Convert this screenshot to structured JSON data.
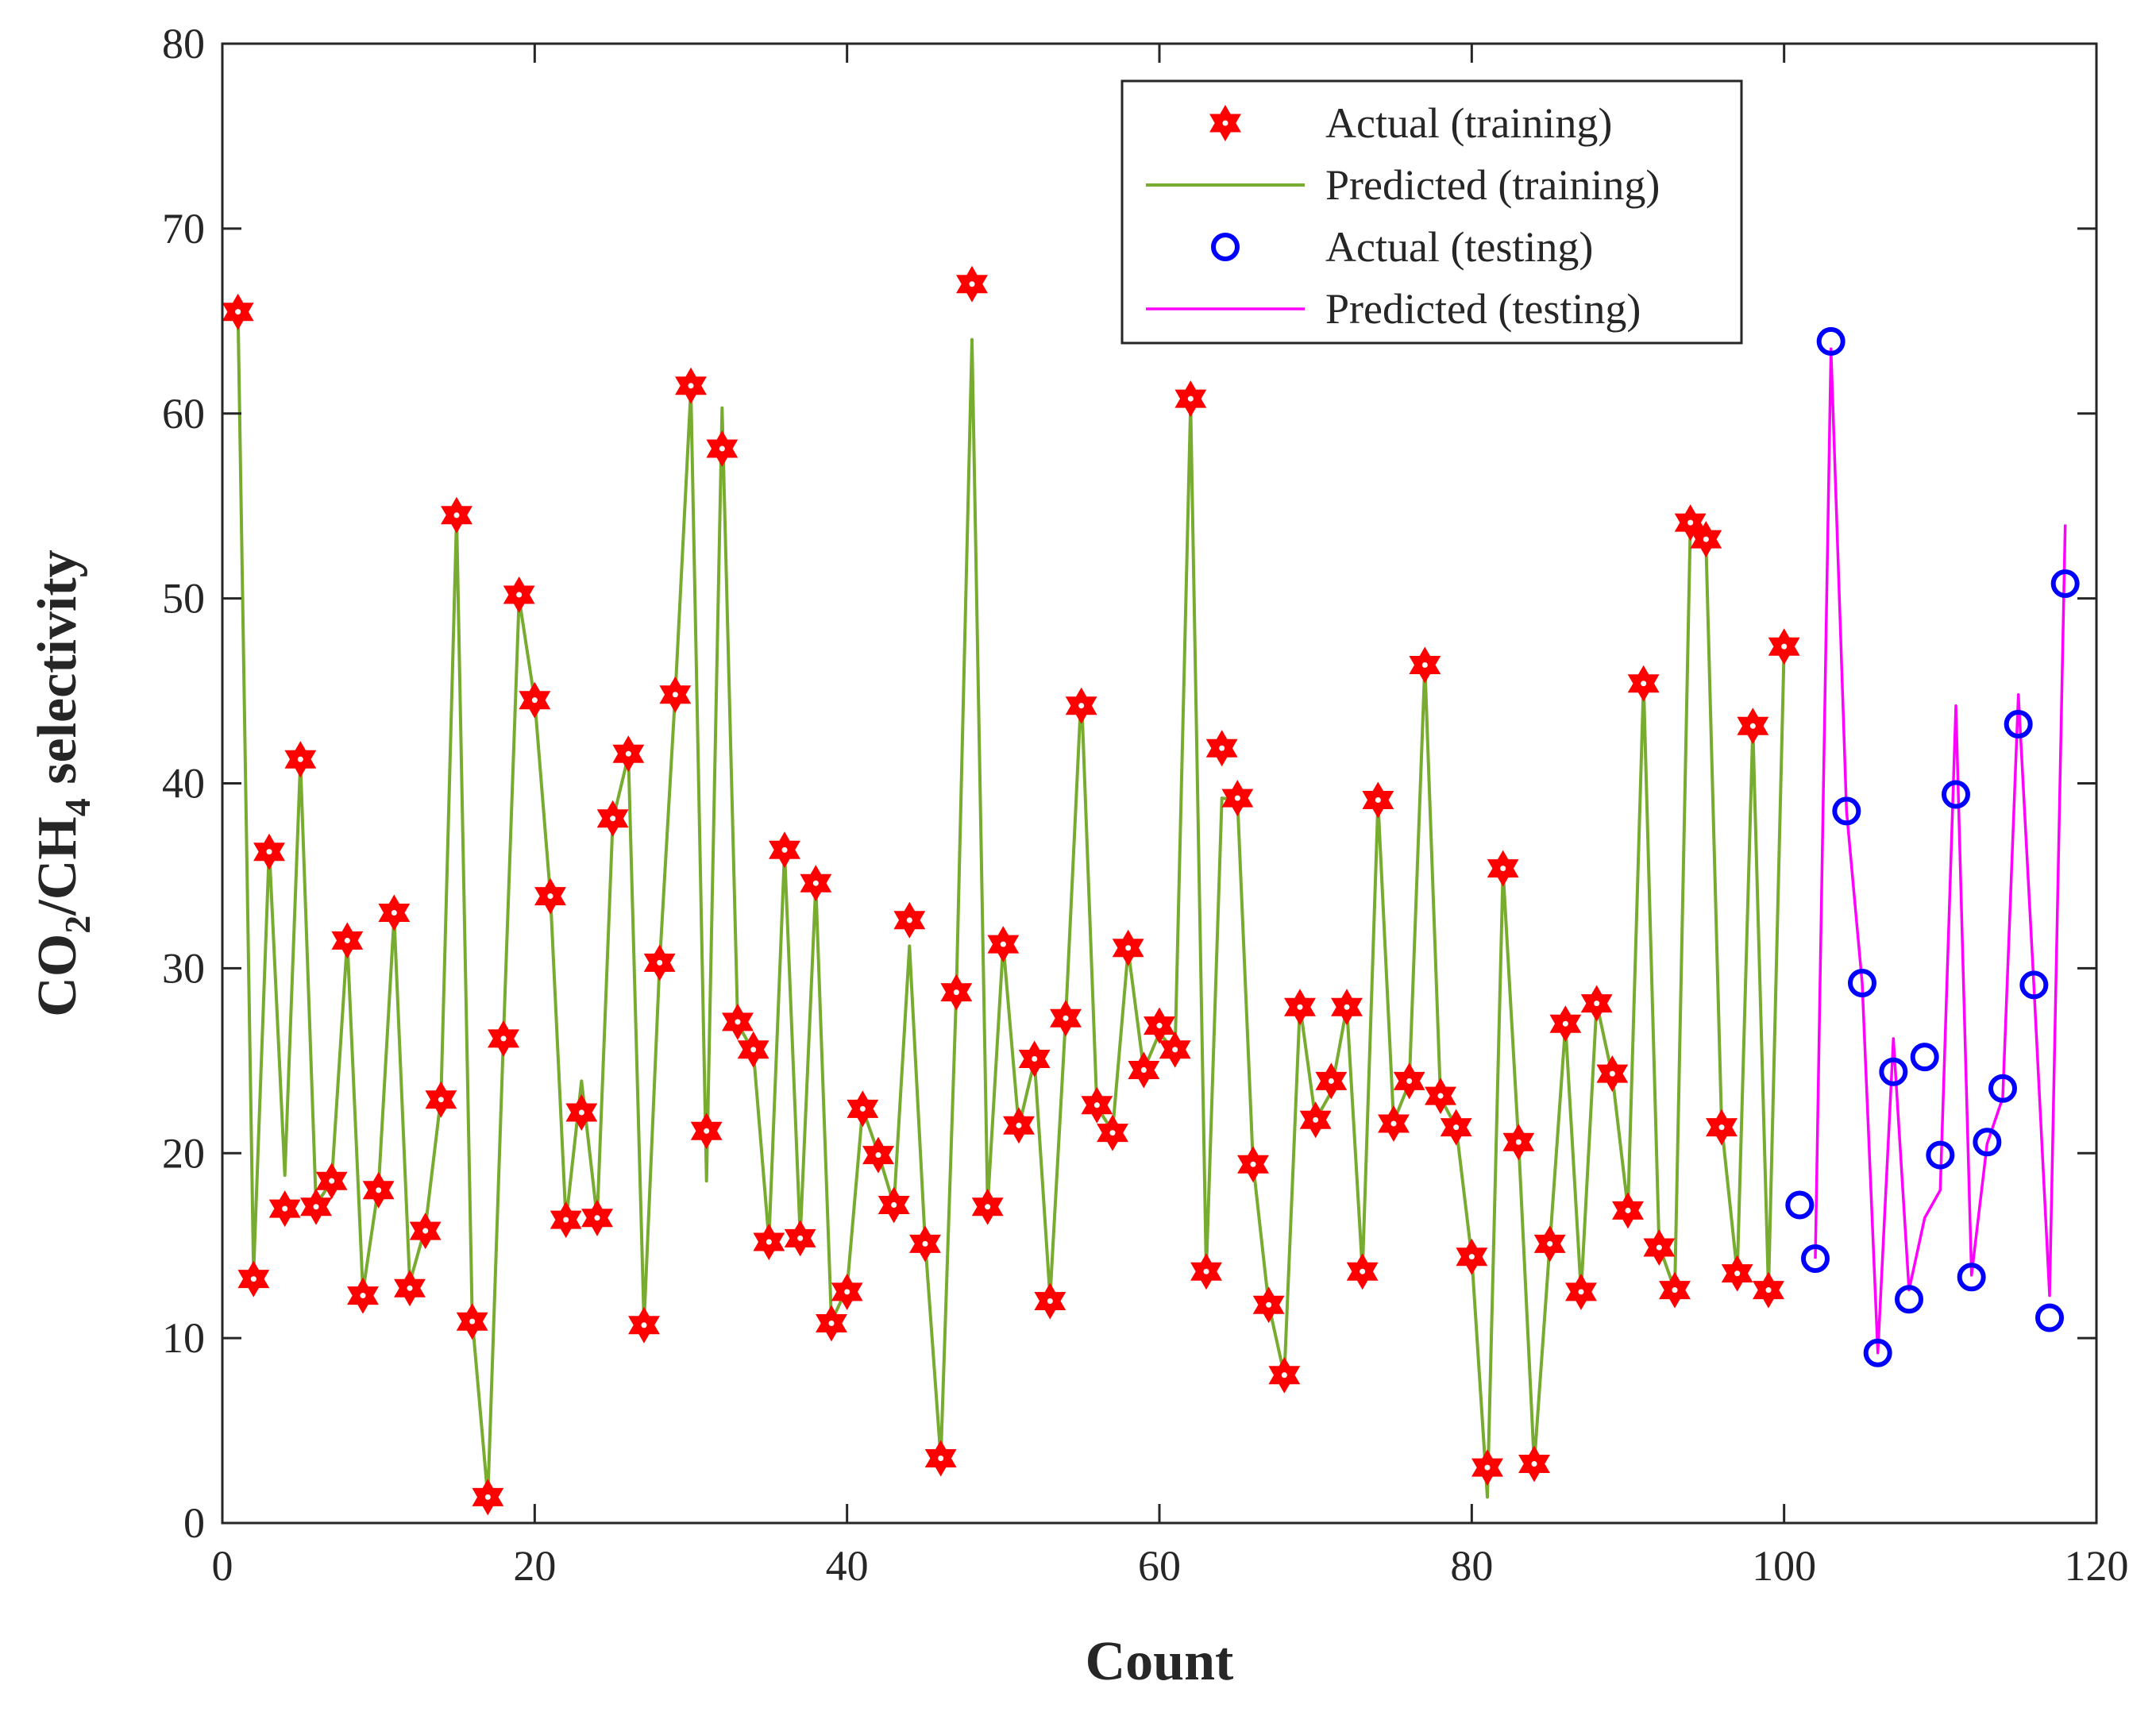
{
  "chart_data": {
    "type": "line",
    "title": "",
    "xlabel": "Count",
    "ylabel": {
      "text": "CO2/CH4 selectivity",
      "parts": [
        "CO",
        "2",
        "/CH",
        "4",
        " selectivity"
      ]
    },
    "xlim": [
      0,
      120
    ],
    "ylim": [
      0,
      80
    ],
    "xticks": [
      0,
      20,
      40,
      60,
      80,
      100,
      120
    ],
    "yticks": [
      0,
      10,
      20,
      30,
      40,
      50,
      60,
      70,
      80
    ],
    "grid": false,
    "legend_position": "top-right",
    "colors": {
      "actual_train": "#ff0000",
      "pred_train": "#77ac30",
      "actual_test": "#0000ff",
      "pred_test": "#ff00ff",
      "axis": "#262626"
    },
    "series": [
      {
        "name": "Actual (training)",
        "style": "hexagram-marker",
        "x": [
          1,
          2,
          3,
          4,
          5,
          6,
          7,
          8,
          9,
          10,
          11,
          12,
          13,
          14,
          15,
          16,
          17,
          18,
          19,
          20,
          21,
          22,
          23,
          24,
          25,
          26,
          27,
          28,
          29,
          30,
          31,
          32,
          33,
          34,
          35,
          36,
          37,
          38,
          39,
          40,
          41,
          42,
          43,
          44,
          45,
          46,
          47,
          48,
          49,
          50,
          51,
          52,
          53,
          54,
          55,
          56,
          57,
          58,
          59,
          60,
          61,
          62,
          63,
          64,
          65,
          66,
          67,
          68,
          69,
          70,
          71,
          72,
          73,
          74,
          75,
          76,
          77,
          78,
          79,
          80,
          81,
          82,
          83,
          84,
          85,
          86,
          87,
          88,
          89,
          90,
          91,
          92,
          93,
          94,
          95,
          96,
          97,
          98,
          99,
          100
        ],
        "values": [
          65.5,
          13.2,
          36.3,
          17,
          41.3,
          17.1,
          18.5,
          31.5,
          12.3,
          18,
          33,
          12.7,
          15.8,
          22.9,
          54.5,
          10.9,
          1.4,
          26.2,
          50.2,
          44.5,
          33.9,
          16.4,
          22.2,
          16.5,
          38.1,
          41.6,
          10.7,
          30.3,
          44.8,
          61.5,
          21.2,
          58.1,
          27.1,
          25.6,
          15.2,
          36.4,
          15.4,
          34.6,
          10.8,
          12.5,
          22.4,
          19.9,
          17.2,
          32.6,
          15.1,
          3.5,
          28.7,
          67,
          17.1,
          31.3,
          21.5,
          25.1,
          12,
          27.3,
          44.2,
          22.6,
          21.1,
          31.1,
          24.5,
          26.9,
          25.6,
          60.8,
          13.6,
          41.9,
          39.2,
          19.4,
          11.8,
          8,
          27.9,
          21.8,
          23.9,
          27.9,
          13.6,
          39.1,
          21.6,
          23.9,
          46.4,
          23.1,
          21.4,
          14.4,
          3,
          35.4,
          20.6,
          3.2,
          15.1,
          27,
          12.5,
          28.1,
          24.3,
          16.9,
          45.4,
          14.9,
          12.6,
          54.1,
          53.2,
          21.4,
          13.5,
          43.1,
          12.6,
          47.4
        ]
      },
      {
        "name": "Predicted (training)",
        "style": "line",
        "x": [
          1,
          2,
          3,
          4,
          5,
          6,
          7,
          8,
          9,
          10,
          11,
          12,
          13,
          14,
          15,
          16,
          17,
          18,
          19,
          20,
          21,
          22,
          23,
          24,
          25,
          26,
          27,
          28,
          29,
          30,
          31,
          32,
          33,
          34,
          35,
          36,
          37,
          38,
          39,
          40,
          41,
          42,
          43,
          44,
          45,
          46,
          47,
          48,
          49,
          50,
          51,
          52,
          53,
          54,
          55,
          56,
          57,
          58,
          59,
          60,
          61,
          62,
          63,
          64,
          65,
          66,
          67,
          68,
          69,
          70,
          71,
          72,
          73,
          74,
          75,
          76,
          77,
          78,
          79,
          80,
          81,
          82,
          83,
          84,
          85,
          86,
          87,
          88,
          89,
          90,
          91,
          92,
          93,
          94,
          95,
          96,
          97,
          98,
          99,
          100
        ],
        "values": [
          65.5,
          13.5,
          36.5,
          18.8,
          41.2,
          17.2,
          18.5,
          31.5,
          12.5,
          18.2,
          32.8,
          13,
          16,
          23,
          54.4,
          11,
          1.4,
          26.3,
          50,
          44.5,
          34,
          16.3,
          23.9,
          16.5,
          38,
          41.5,
          10.8,
          30.3,
          44.8,
          61.3,
          18.5,
          60.3,
          27,
          25.5,
          15.3,
          36.3,
          15.5,
          34.5,
          10.9,
          12.7,
          22.4,
          20,
          17.2,
          31.2,
          15.2,
          3.5,
          28.7,
          64,
          17.2,
          31.3,
          21.4,
          25,
          12.2,
          27.3,
          45,
          22.5,
          21.2,
          31,
          24.5,
          26.5,
          25.5,
          60.5,
          13.6,
          39.2,
          39.1,
          19.4,
          11.8,
          8,
          28,
          21.8,
          23.3,
          27.9,
          13.6,
          39,
          21.7,
          23.8,
          46.4,
          23,
          21.4,
          14.4,
          1.4,
          35.3,
          20.6,
          3.2,
          15.1,
          26.9,
          12.5,
          28.1,
          24.2,
          17,
          45.4,
          15,
          12.6,
          54.1,
          53,
          21.5,
          13.5,
          43,
          12.6,
          47.3
        ]
      },
      {
        "name": "Actual (testing)",
        "style": "circle-marker",
        "x": [
          101,
          102,
          103,
          104,
          105,
          106,
          107,
          108,
          109,
          110,
          111,
          112,
          113,
          114,
          115,
          116,
          117,
          118
        ],
        "values": [
          17.2,
          14.3,
          63.9,
          38.5,
          29.2,
          9.2,
          24.4,
          12.1,
          25.2,
          19.9,
          39.4,
          13.3,
          20.6,
          23.5,
          43.2,
          29.1,
          11.1,
          50.8
        ]
      },
      {
        "name": "Predicted (testing)",
        "style": "line",
        "x": [
          102,
          103,
          104,
          105,
          106,
          107,
          108,
          109,
          110,
          111,
          112,
          113,
          114,
          115,
          116,
          117,
          118
        ],
        "values": [
          14.3,
          63.5,
          38.5,
          29.2,
          9.2,
          26.2,
          12.6,
          16.5,
          18,
          44.2,
          13.4,
          20.5,
          23,
          44.8,
          29,
          12.3,
          54
        ]
      }
    ]
  }
}
